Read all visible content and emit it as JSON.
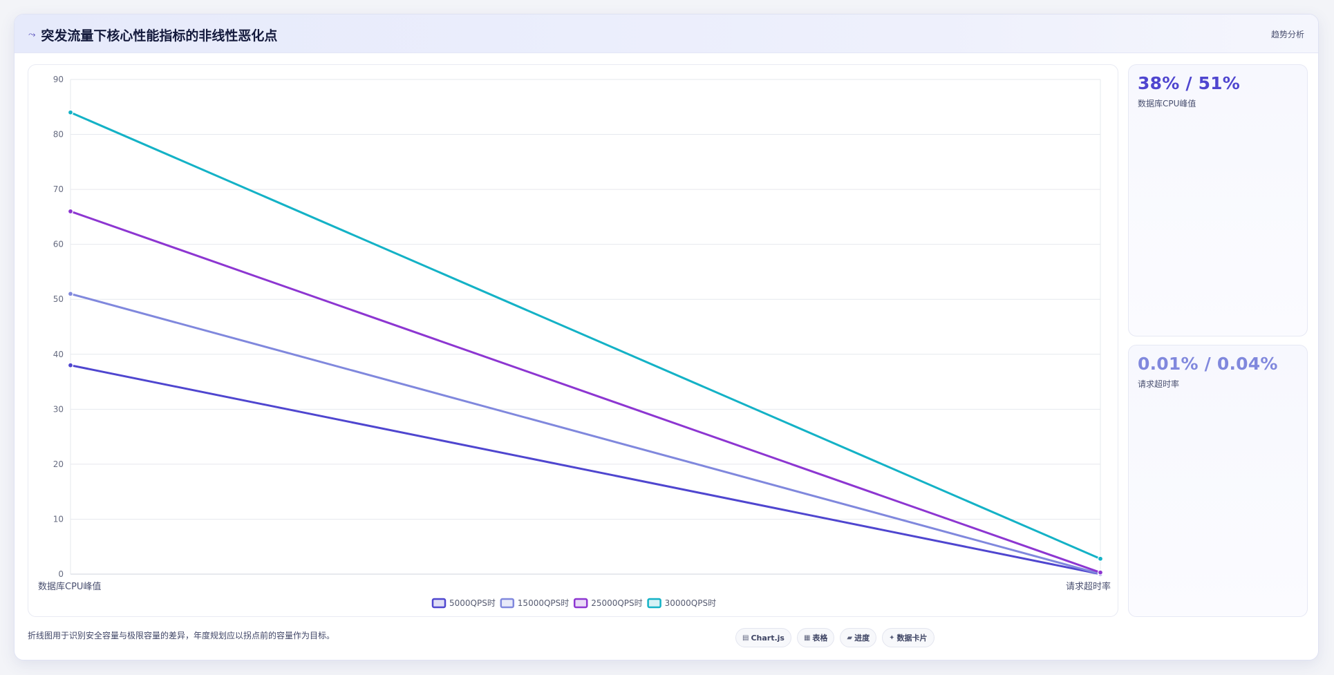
{
  "header": {
    "icon": "trend-line-icon",
    "title": "突发流量下核心性能指标的非线性恶化点",
    "tag": "趋势分析"
  },
  "stats": [
    {
      "value": "38% / 51%",
      "label": "数据库CPU峰值",
      "color": "#4f46cf"
    },
    {
      "value": "0.01% / 0.04%",
      "label": "请求超时率",
      "color": "#8088dd"
    }
  ],
  "footer": {
    "note": "折线图用于识别安全容量与极限容量的差异，年度规划应以拐点前的容量作为目标。",
    "pills": [
      {
        "icon": "chart-icon",
        "label": "Chart.js"
      },
      {
        "icon": "table-icon",
        "label": "表格"
      },
      {
        "icon": "progress-icon",
        "label": "进度"
      },
      {
        "icon": "data-card-icon",
        "label": "数据卡片"
      }
    ]
  },
  "chart_data": {
    "type": "line",
    "categories": [
      "数据库CPU峰值",
      "请求超时率"
    ],
    "ylim": [
      0,
      90
    ],
    "yticks": [
      0,
      10,
      20,
      30,
      40,
      50,
      60,
      70,
      80,
      90
    ],
    "grid": true,
    "legend_position": "bottom-center",
    "series": [
      {
        "name": "5000QPS时",
        "values": [
          38,
          0.01
        ],
        "color": "#4f46cf"
      },
      {
        "name": "15000QPS时",
        "values": [
          51,
          0.04
        ],
        "color": "#8088dd"
      },
      {
        "name": "25000QPS时",
        "values": [
          66,
          0.3
        ],
        "color": "#8d36d1"
      },
      {
        "name": "30000QPS时",
        "values": [
          84,
          2.8
        ],
        "color": "#14b2c6"
      }
    ]
  }
}
